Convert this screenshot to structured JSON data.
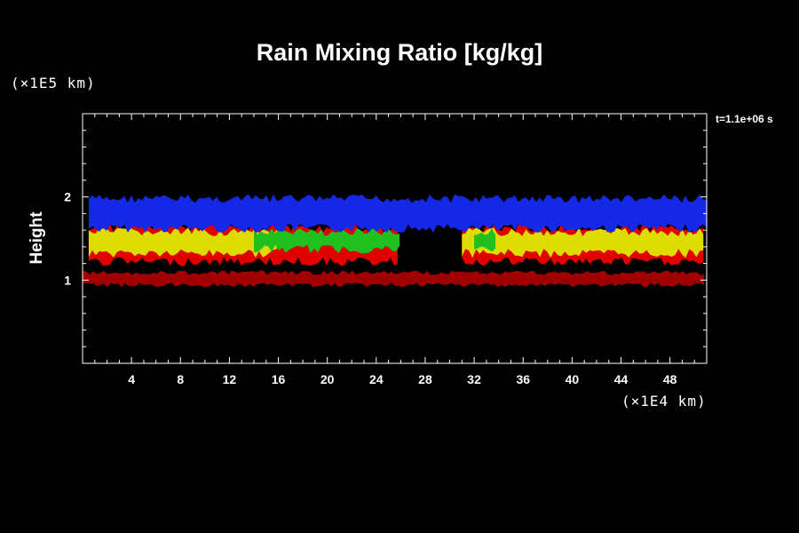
{
  "chart_data": {
    "type": "heatmap",
    "title": "Rain Mixing Ratio [kg/kg]",
    "ylabel": "Height",
    "yunit": "(×1E5 km)",
    "xunit": "(×1E4 km)",
    "time_label": "t=1.1e+06 s",
    "xlim": [
      0,
      51
    ],
    "ylim": [
      0,
      3
    ],
    "xticks": [
      4,
      8,
      12,
      16,
      20,
      24,
      28,
      32,
      36,
      40,
      44,
      48
    ],
    "yticks": [
      1,
      2
    ],
    "layers": [
      {
        "color": "#1428e6",
        "name": "blue",
        "y_range": [
          1.6,
          2.0
        ],
        "x_range": [
          0.5,
          51
        ]
      },
      {
        "color": "#dcdc00",
        "name": "yellow",
        "y_range": [
          1.3,
          1.6
        ],
        "segments": [
          [
            0.5,
            16
          ],
          [
            31,
            51
          ]
        ]
      },
      {
        "color": "#20c020",
        "name": "green",
        "y_range": [
          1.35,
          1.6
        ],
        "segments": [
          [
            14,
            26
          ],
          [
            32,
            34
          ]
        ]
      },
      {
        "color": "#e00000",
        "name": "red",
        "y_range": [
          1.2,
          1.65
        ],
        "segments": [
          [
            0.5,
            26
          ],
          [
            31,
            51
          ]
        ]
      },
      {
        "color": "#a00000",
        "name": "dark-red",
        "y_range": [
          0.93,
          1.1
        ],
        "x_range": [
          0,
          51
        ]
      }
    ],
    "grid": false
  }
}
